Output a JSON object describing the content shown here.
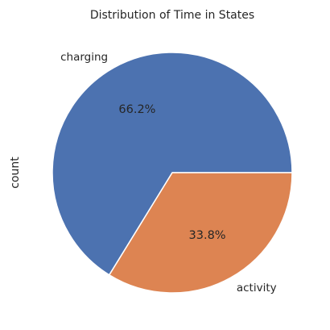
{
  "chart_data": {
    "type": "pie",
    "title": "Distribution of Time in States",
    "xlabel": "",
    "ylabel": "count",
    "start_angle_deg": 0,
    "direction": "counterclockwise",
    "slices": [
      {
        "label": "charging",
        "percent": 66.2,
        "percent_label": "66.2%",
        "color": "#4c72b0"
      },
      {
        "label": "activity",
        "percent": 33.8,
        "percent_label": "33.8%",
        "color": "#dd8452"
      }
    ]
  }
}
